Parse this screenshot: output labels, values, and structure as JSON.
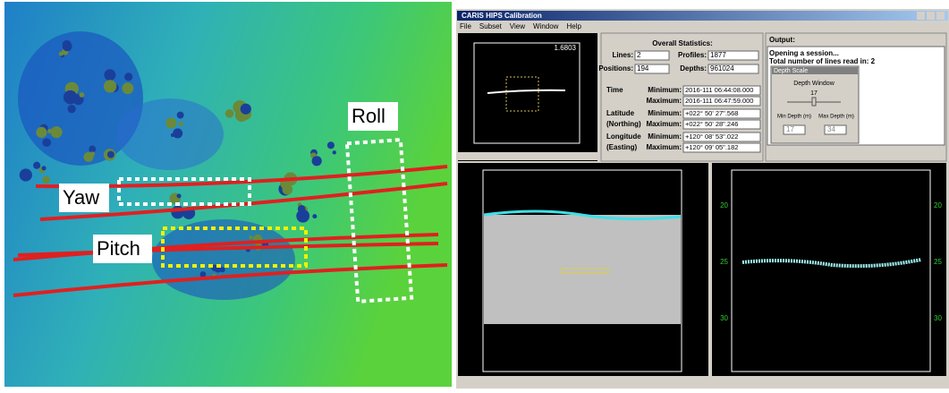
{
  "map": {
    "labels": {
      "yaw": "Yaw",
      "pitch": "Pitch",
      "roll": "Roll"
    }
  },
  "window": {
    "title": "CARIS HIPS Calibration",
    "menu": [
      "File",
      "Subset",
      "View",
      "Window",
      "Help"
    ],
    "navigation": {
      "scale": "1.6803"
    },
    "statistics": {
      "heading": "Overall Statistics:",
      "lines_label": "Lines:",
      "lines": "2",
      "profiles_label": "Profiles:",
      "profiles": "1877",
      "positions_label": "Positions:",
      "positions": "194",
      "depths_label": "Depths:",
      "depths": "961024",
      "time": {
        "label": "Time",
        "min_label": "Minimum:",
        "min": "2016-111 06:44:08.000",
        "max_label": "Maximum:",
        "max": "2016-111 06:47:59.000"
      },
      "latitude": {
        "label": "Latitude",
        "sublabel": "(Northing)",
        "min_label": "Minimum:",
        "min": "+022° 50' 27\".568",
        "max_label": "Maximum:",
        "max": "+022° 50' 28\".246"
      },
      "longitude": {
        "label": "Longitude",
        "sublabel": "(Easting)",
        "min_label": "Minimum:",
        "min": "+120° 08' 53\".022",
        "max_label": "Maximum:",
        "max": "+120° 09' 05\".182"
      }
    },
    "output": {
      "heading": "Output:",
      "lines": [
        "Opening a session...",
        "Total number of lines read in: 2"
      ],
      "dialog": {
        "title": "Depth Scale",
        "window_label": "Depth Window",
        "window_value": "17",
        "min_label": "Min Depth (m)",
        "max_label": "Max Depth (m)",
        "min": "17",
        "max": "34"
      }
    },
    "side_view": {
      "ticks": [
        "20",
        "25",
        "30"
      ]
    }
  }
}
